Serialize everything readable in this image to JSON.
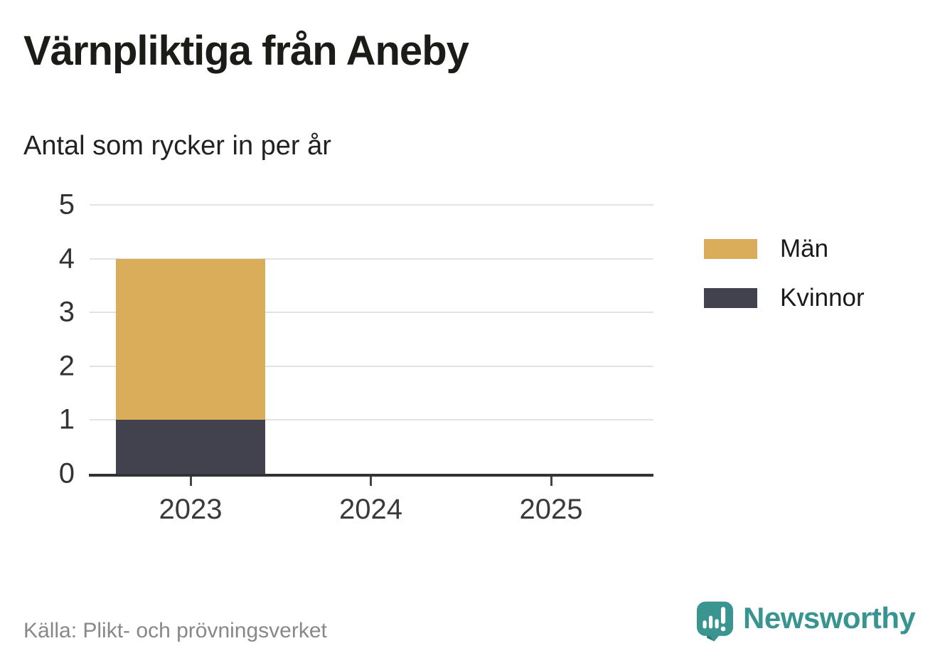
{
  "chart_data": {
    "type": "bar",
    "stacked": true,
    "title": "Värnpliktiga från Aneby",
    "subtitle": "Antal som rycker in per år",
    "categories": [
      "2023",
      "2024",
      "2025"
    ],
    "series": [
      {
        "name": "Män",
        "color": "#d9ad5a",
        "values": [
          3,
          0,
          0
        ]
      },
      {
        "name": "Kvinnor",
        "color": "#42424e",
        "values": [
          1,
          0,
          0
        ]
      }
    ],
    "ylim": [
      0,
      5
    ],
    "yticks": [
      0,
      1,
      2,
      3,
      4,
      5
    ],
    "grid": true,
    "legend_position": "right",
    "source": "Källa: Plikt- och prövningsverket"
  },
  "brand": {
    "name": "Newsworthy",
    "color": "#389490"
  },
  "colors": {
    "axis": "#333333",
    "gridline": "#e2e2e2",
    "tick_label": "#3a3a3a",
    "title": "#1b1b18",
    "source": "#888888"
  }
}
